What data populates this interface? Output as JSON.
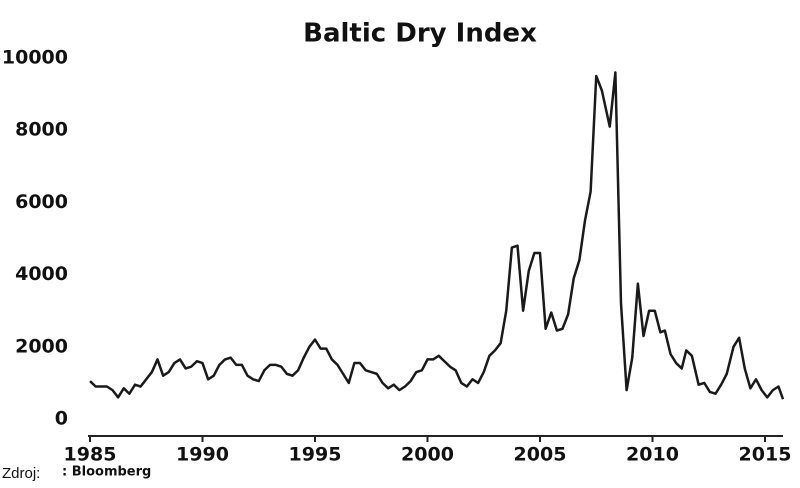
{
  "chart_data": {
    "type": "line",
    "title": "Baltic Dry Index",
    "source_label": "Zdroj:",
    "source": ": Bloomberg",
    "x": [
      1985,
      1985.25,
      1985.5,
      1985.75,
      1986,
      1986.25,
      1986.5,
      1986.75,
      1987,
      1987.25,
      1987.5,
      1987.75,
      1988,
      1988.25,
      1988.5,
      1988.75,
      1989,
      1989.25,
      1989.5,
      1989.75,
      1990,
      1990.25,
      1990.5,
      1990.75,
      1991,
      1991.25,
      1991.5,
      1991.75,
      1992,
      1992.25,
      1992.5,
      1992.75,
      1993,
      1993.25,
      1993.5,
      1993.75,
      1994,
      1994.25,
      1994.5,
      1994.75,
      1995,
      1995.25,
      1995.5,
      1995.75,
      1996,
      1996.25,
      1996.5,
      1996.75,
      1997,
      1997.25,
      1997.5,
      1997.75,
      1998,
      1998.25,
      1998.5,
      1998.75,
      1999,
      1999.25,
      1999.5,
      1999.75,
      2000,
      2000.25,
      2000.5,
      2000.75,
      2001,
      2001.25,
      2001.5,
      2001.75,
      2002,
      2002.25,
      2002.5,
      2002.75,
      2003,
      2003.25,
      2003.5,
      2003.75,
      2004,
      2004.25,
      2004.5,
      2004.75,
      2005,
      2005.25,
      2005.5,
      2005.75,
      2006,
      2006.25,
      2006.5,
      2006.75,
      2007,
      2007.25,
      2007.5,
      2007.75,
      2008.1,
      2008.35,
      2008.6,
      2008.85,
      2009.1,
      2009.35,
      2009.6,
      2009.85,
      2010.1,
      2010.35,
      2010.55,
      2010.8,
      2011.05,
      2011.3,
      2011.5,
      2011.75,
      2012.05,
      2012.3,
      2012.55,
      2012.8,
      2013.05,
      2013.3,
      2013.6,
      2013.85,
      2014.1,
      2014.35,
      2014.6,
      2014.85,
      2015.1,
      2015.35,
      2015.6,
      2015.8
    ],
    "series": [
      {
        "color": "#1a1a1a",
        "values": [
          1050,
          900,
          900,
          900,
          800,
          600,
          850,
          700,
          950,
          900,
          1100,
          1300,
          1650,
          1200,
          1300,
          1550,
          1650,
          1400,
          1450,
          1600,
          1550,
          1100,
          1200,
          1500,
          1650,
          1700,
          1500,
          1500,
          1200,
          1100,
          1050,
          1350,
          1500,
          1500,
          1450,
          1250,
          1200,
          1350,
          1700,
          2000,
          2200,
          1950,
          1950,
          1650,
          1500,
          1250,
          1000,
          1550,
          1550,
          1350,
          1300,
          1250,
          1000,
          850,
          950,
          800,
          900,
          1050,
          1300,
          1350,
          1650,
          1650,
          1750,
          1600,
          1450,
          1350,
          1000,
          900,
          1100,
          1000,
          1300,
          1750,
          1900,
          2100,
          3000,
          4750,
          4800,
          3000,
          4100,
          4600,
          4600,
          2500,
          2950,
          2450,
          2500,
          2900,
          3900,
          4400,
          5500,
          6300,
          9500,
          9100,
          8100,
          9600,
          3200,
          800,
          1700,
          3750,
          2300,
          3000,
          3000,
          2400,
          2450,
          1800,
          1550,
          1400,
          1900,
          1750,
          950,
          1000,
          750,
          700,
          950,
          1250,
          2000,
          2250,
          1400,
          850,
          1100,
          800,
          600,
          800,
          900,
          550
        ]
      }
    ],
    "xlim": [
      1985,
      2015.8
    ],
    "ylim": [
      0,
      10000
    ],
    "xticks": [
      1985,
      1990,
      1995,
      2000,
      2005,
      2010,
      2015
    ],
    "yticks": [
      0,
      2000,
      4000,
      6000,
      8000,
      10000
    ]
  }
}
